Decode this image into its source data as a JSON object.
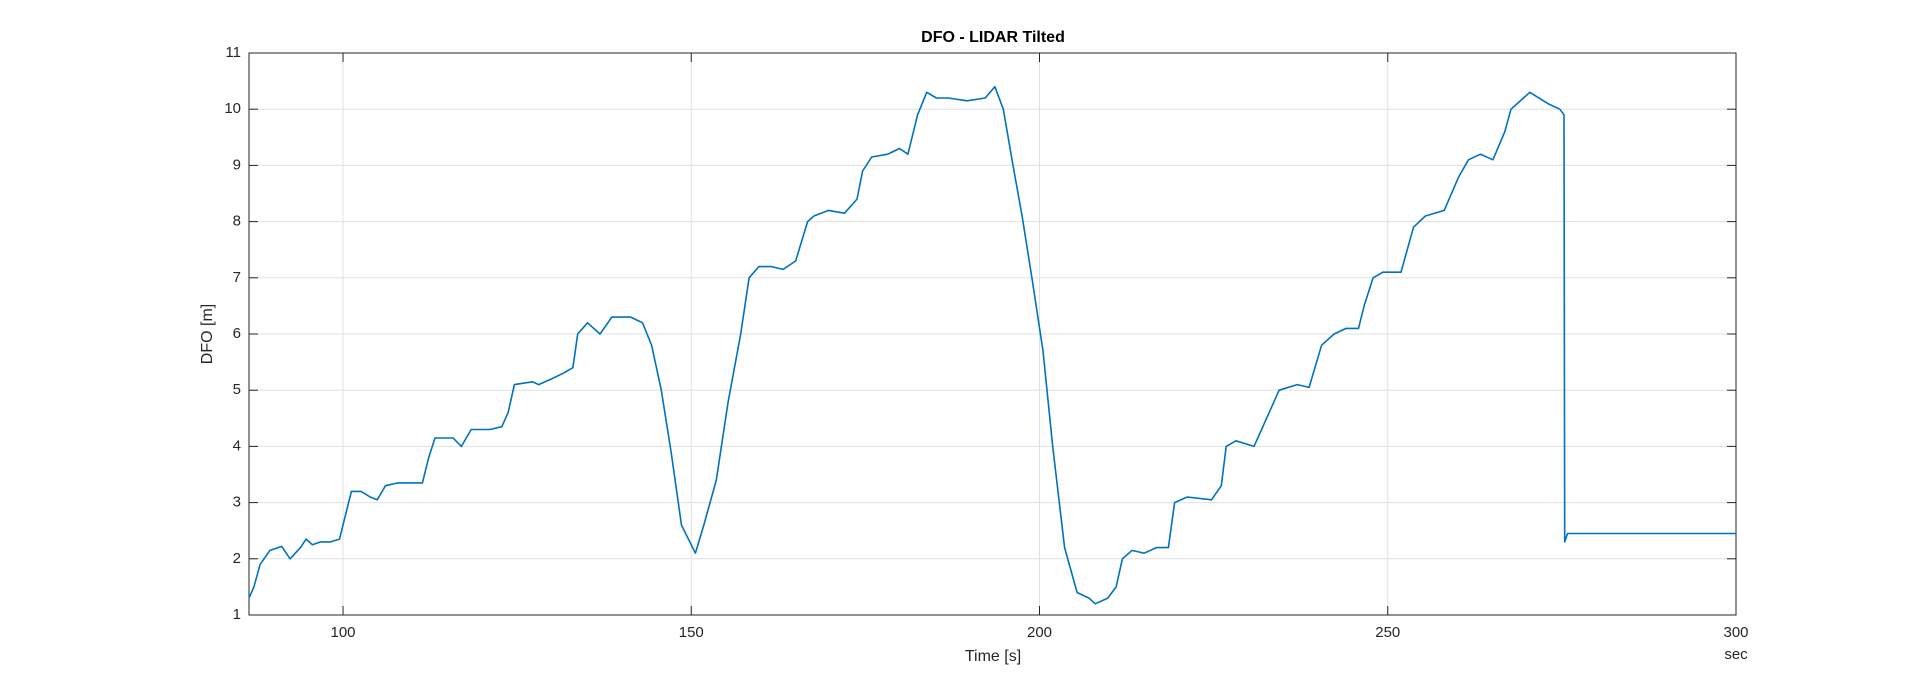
{
  "chart_data": {
    "type": "line",
    "title": "DFO - LIDAR Tilted",
    "x_label": "Time [s]",
    "y_label": "DFO [m]",
    "x_unit_label": "sec",
    "grid": true,
    "xlim": [
      86.5,
      300
    ],
    "xticks": [
      100,
      150,
      200,
      250,
      300
    ],
    "ylim": [
      1,
      11
    ],
    "yticks": [
      1,
      2,
      3,
      4,
      5,
      6,
      7,
      8,
      9,
      10,
      11
    ],
    "series": [
      {
        "color": "#0072bd",
        "x": [
          86.5,
          87.2,
          88.1,
          89.5,
          91.2,
          92.4,
          93.9,
          94.7,
          95.6,
          96.8,
          98.2,
          99.5,
          100.4,
          101.2,
          102.6,
          103.9,
          104.9,
          106.1,
          107.9,
          111.4,
          112.3,
          113.2,
          115.8,
          117.0,
          118.4,
          121.1,
          122.8,
          123.7,
          124.6,
          127.2,
          128.1,
          129.9,
          131.6,
          133.0,
          133.7,
          135.1,
          136.9,
          138.6,
          141.3,
          143.0,
          144.3,
          145.7,
          147.1,
          148.6,
          150.6,
          151.8,
          153.6,
          155.3,
          157.1,
          158.3,
          159.7,
          161.5,
          163.2,
          165.0,
          166.7,
          167.6,
          169.7,
          172.0,
          173.8,
          174.6,
          175.9,
          178.2,
          179.9,
          181.1,
          182.5,
          183.8,
          185.2,
          186.9,
          189.6,
          192.2,
          193.6,
          194.8,
          196.2,
          197.5,
          198.9,
          200.5,
          201.9,
          203.6,
          205.4,
          207.1,
          208.0,
          209.8,
          211.0,
          211.9,
          213.3,
          215.0,
          216.8,
          218.5,
          219.4,
          221.2,
          224.7,
          226.1,
          226.8,
          228.2,
          230.8,
          232.6,
          234.4,
          237.0,
          238.7,
          240.5,
          242.3,
          244.0,
          245.8,
          246.6,
          247.9,
          249.3,
          251.9,
          253.7,
          255.4,
          258.1,
          260.2,
          261.6,
          263.3,
          265.1,
          266.8,
          267.7,
          270.4,
          273.0,
          274.7,
          275.3,
          275.4,
          275.8,
          279.1,
          287.9,
          296.7,
          300
        ],
        "values": [
          1.3,
          1.5,
          1.9,
          2.15,
          2.22,
          2.0,
          2.2,
          2.35,
          2.25,
          2.3,
          2.3,
          2.35,
          2.8,
          3.2,
          3.2,
          3.1,
          3.05,
          3.3,
          3.35,
          3.35,
          3.8,
          4.15,
          4.15,
          4.0,
          4.3,
          4.3,
          4.35,
          4.6,
          5.1,
          5.15,
          5.1,
          5.2,
          5.3,
          5.4,
          6.0,
          6.2,
          6.0,
          6.3,
          6.3,
          6.2,
          5.8,
          5.0,
          3.9,
          2.6,
          2.1,
          2.6,
          3.4,
          4.8,
          6.0,
          7.0,
          7.2,
          7.2,
          7.15,
          7.3,
          8.0,
          8.1,
          8.2,
          8.15,
          8.4,
          8.9,
          9.15,
          9.2,
          9.3,
          9.2,
          9.9,
          10.3,
          10.2,
          10.2,
          10.15,
          10.2,
          10.4,
          10.0,
          9.0,
          8.1,
          7.0,
          5.7,
          4.0,
          2.2,
          1.4,
          1.3,
          1.2,
          1.3,
          1.5,
          2.0,
          2.15,
          2.1,
          2.2,
          2.2,
          3.0,
          3.1,
          3.05,
          3.3,
          4.0,
          4.1,
          4.0,
          4.5,
          5.0,
          5.1,
          5.05,
          5.8,
          6.0,
          6.1,
          6.1,
          6.5,
          7.0,
          7.1,
          7.1,
          7.9,
          8.1,
          8.2,
          8.8,
          9.1,
          9.2,
          9.1,
          9.6,
          10.0,
          10.3,
          10.1,
          10.0,
          9.9,
          2.3,
          2.45,
          2.45,
          2.45,
          2.45,
          2.45
        ]
      }
    ]
  }
}
